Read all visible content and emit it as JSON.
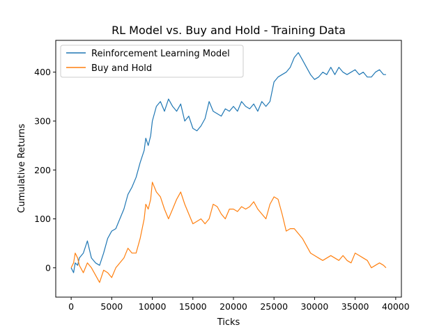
{
  "chart_data": {
    "type": "line",
    "title": "RL Model vs. Buy and Hold - Training Data",
    "xlabel": "Ticks",
    "ylabel": "Cumulative Returns",
    "xlim": [
      -1900,
      40700
    ],
    "ylim": [
      -60,
      465
    ],
    "xticks": [
      0,
      5000,
      10000,
      15000,
      20000,
      25000,
      30000,
      35000,
      40000
    ],
    "yticks": [
      0,
      100,
      200,
      300,
      400
    ],
    "grid": false,
    "legend_position": "top-left",
    "series": [
      {
        "name": "Reinforcement Learning Model",
        "color": "#1f77b4",
        "x": [
          0,
          300,
          500,
          800,
          1000,
          1500,
          2000,
          2500,
          3000,
          3500,
          4000,
          4500,
          5000,
          5500,
          6000,
          6500,
          7000,
          7500,
          8000,
          8500,
          9000,
          9200,
          9500,
          9800,
          10000,
          10500,
          11000,
          11500,
          12000,
          12500,
          13000,
          13500,
          14000,
          14500,
          15000,
          15500,
          16000,
          16500,
          17000,
          17500,
          18000,
          18500,
          19000,
          19500,
          20000,
          20500,
          21000,
          21500,
          22000,
          22500,
          23000,
          23500,
          24000,
          24500,
          25000,
          25500,
          26000,
          26500,
          27000,
          27500,
          28000,
          28500,
          29000,
          29500,
          30000,
          30500,
          31000,
          31500,
          32000,
          32500,
          33000,
          33500,
          34000,
          34500,
          35000,
          35500,
          36000,
          36500,
          37000,
          37500,
          38000,
          38500,
          38800
        ],
        "y": [
          0,
          -10,
          10,
          5,
          20,
          30,
          55,
          20,
          10,
          5,
          30,
          60,
          75,
          80,
          100,
          120,
          150,
          165,
          185,
          215,
          240,
          265,
          250,
          270,
          300,
          330,
          340,
          320,
          345,
          330,
          320,
          335,
          300,
          310,
          285,
          280,
          290,
          305,
          340,
          320,
          315,
          310,
          325,
          320,
          330,
          320,
          340,
          330,
          325,
          335,
          320,
          340,
          330,
          340,
          380,
          390,
          395,
          400,
          410,
          430,
          440,
          425,
          410,
          395,
          385,
          390,
          400,
          395,
          410,
          395,
          410,
          400,
          395,
          400,
          405,
          395,
          400,
          390,
          390,
          400,
          405,
          395,
          395
        ]
      },
      {
        "name": "Buy and Hold",
        "color": "#ff7f0e",
        "x": [
          0,
          300,
          500,
          800,
          1000,
          1500,
          2000,
          2500,
          3000,
          3500,
          4000,
          4500,
          5000,
          5500,
          6000,
          6500,
          7000,
          7500,
          8000,
          8500,
          9000,
          9200,
          9500,
          9800,
          10000,
          10500,
          11000,
          11500,
          12000,
          12500,
          13000,
          13500,
          14000,
          14500,
          15000,
          15500,
          16000,
          16500,
          17000,
          17500,
          18000,
          18500,
          19000,
          19500,
          20000,
          20500,
          21000,
          21500,
          22000,
          22500,
          23000,
          23500,
          24000,
          24500,
          25000,
          25500,
          26000,
          26500,
          27000,
          27500,
          28000,
          28500,
          29000,
          29500,
          30000,
          30500,
          31000,
          31500,
          32000,
          32500,
          33000,
          33500,
          34000,
          34500,
          35000,
          35500,
          36000,
          36500,
          37000,
          37500,
          38000,
          38500,
          38800
        ],
        "y": [
          0,
          10,
          30,
          20,
          5,
          -10,
          10,
          0,
          -15,
          -30,
          -5,
          -10,
          -20,
          0,
          10,
          20,
          40,
          30,
          30,
          60,
          100,
          130,
          120,
          140,
          175,
          155,
          145,
          120,
          100,
          120,
          140,
          155,
          130,
          110,
          90,
          95,
          100,
          90,
          100,
          130,
          125,
          110,
          100,
          120,
          120,
          115,
          125,
          120,
          125,
          135,
          120,
          110,
          100,
          130,
          145,
          140,
          110,
          75,
          80,
          80,
          70,
          60,
          45,
          30,
          25,
          20,
          15,
          20,
          25,
          20,
          15,
          25,
          15,
          10,
          30,
          25,
          20,
          15,
          0,
          5,
          10,
          5,
          0
        ]
      }
    ]
  }
}
